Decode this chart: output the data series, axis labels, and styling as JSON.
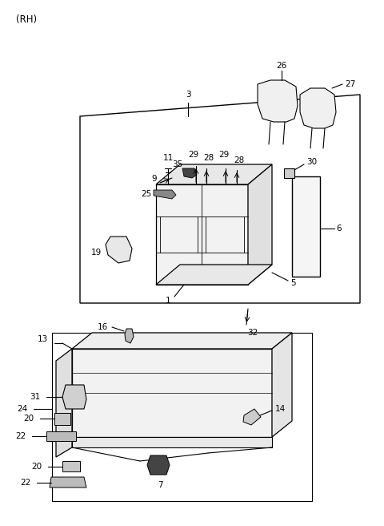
{
  "background_color": "#ffffff",
  "line_color": "#000000",
  "label_color": "#000000",
  "title_text": "(RH)",
  "title_fontsize": 8,
  "parts_fontsize": 7.5,
  "figsize": [
    4.8,
    6.56
  ],
  "dpi": 100
}
